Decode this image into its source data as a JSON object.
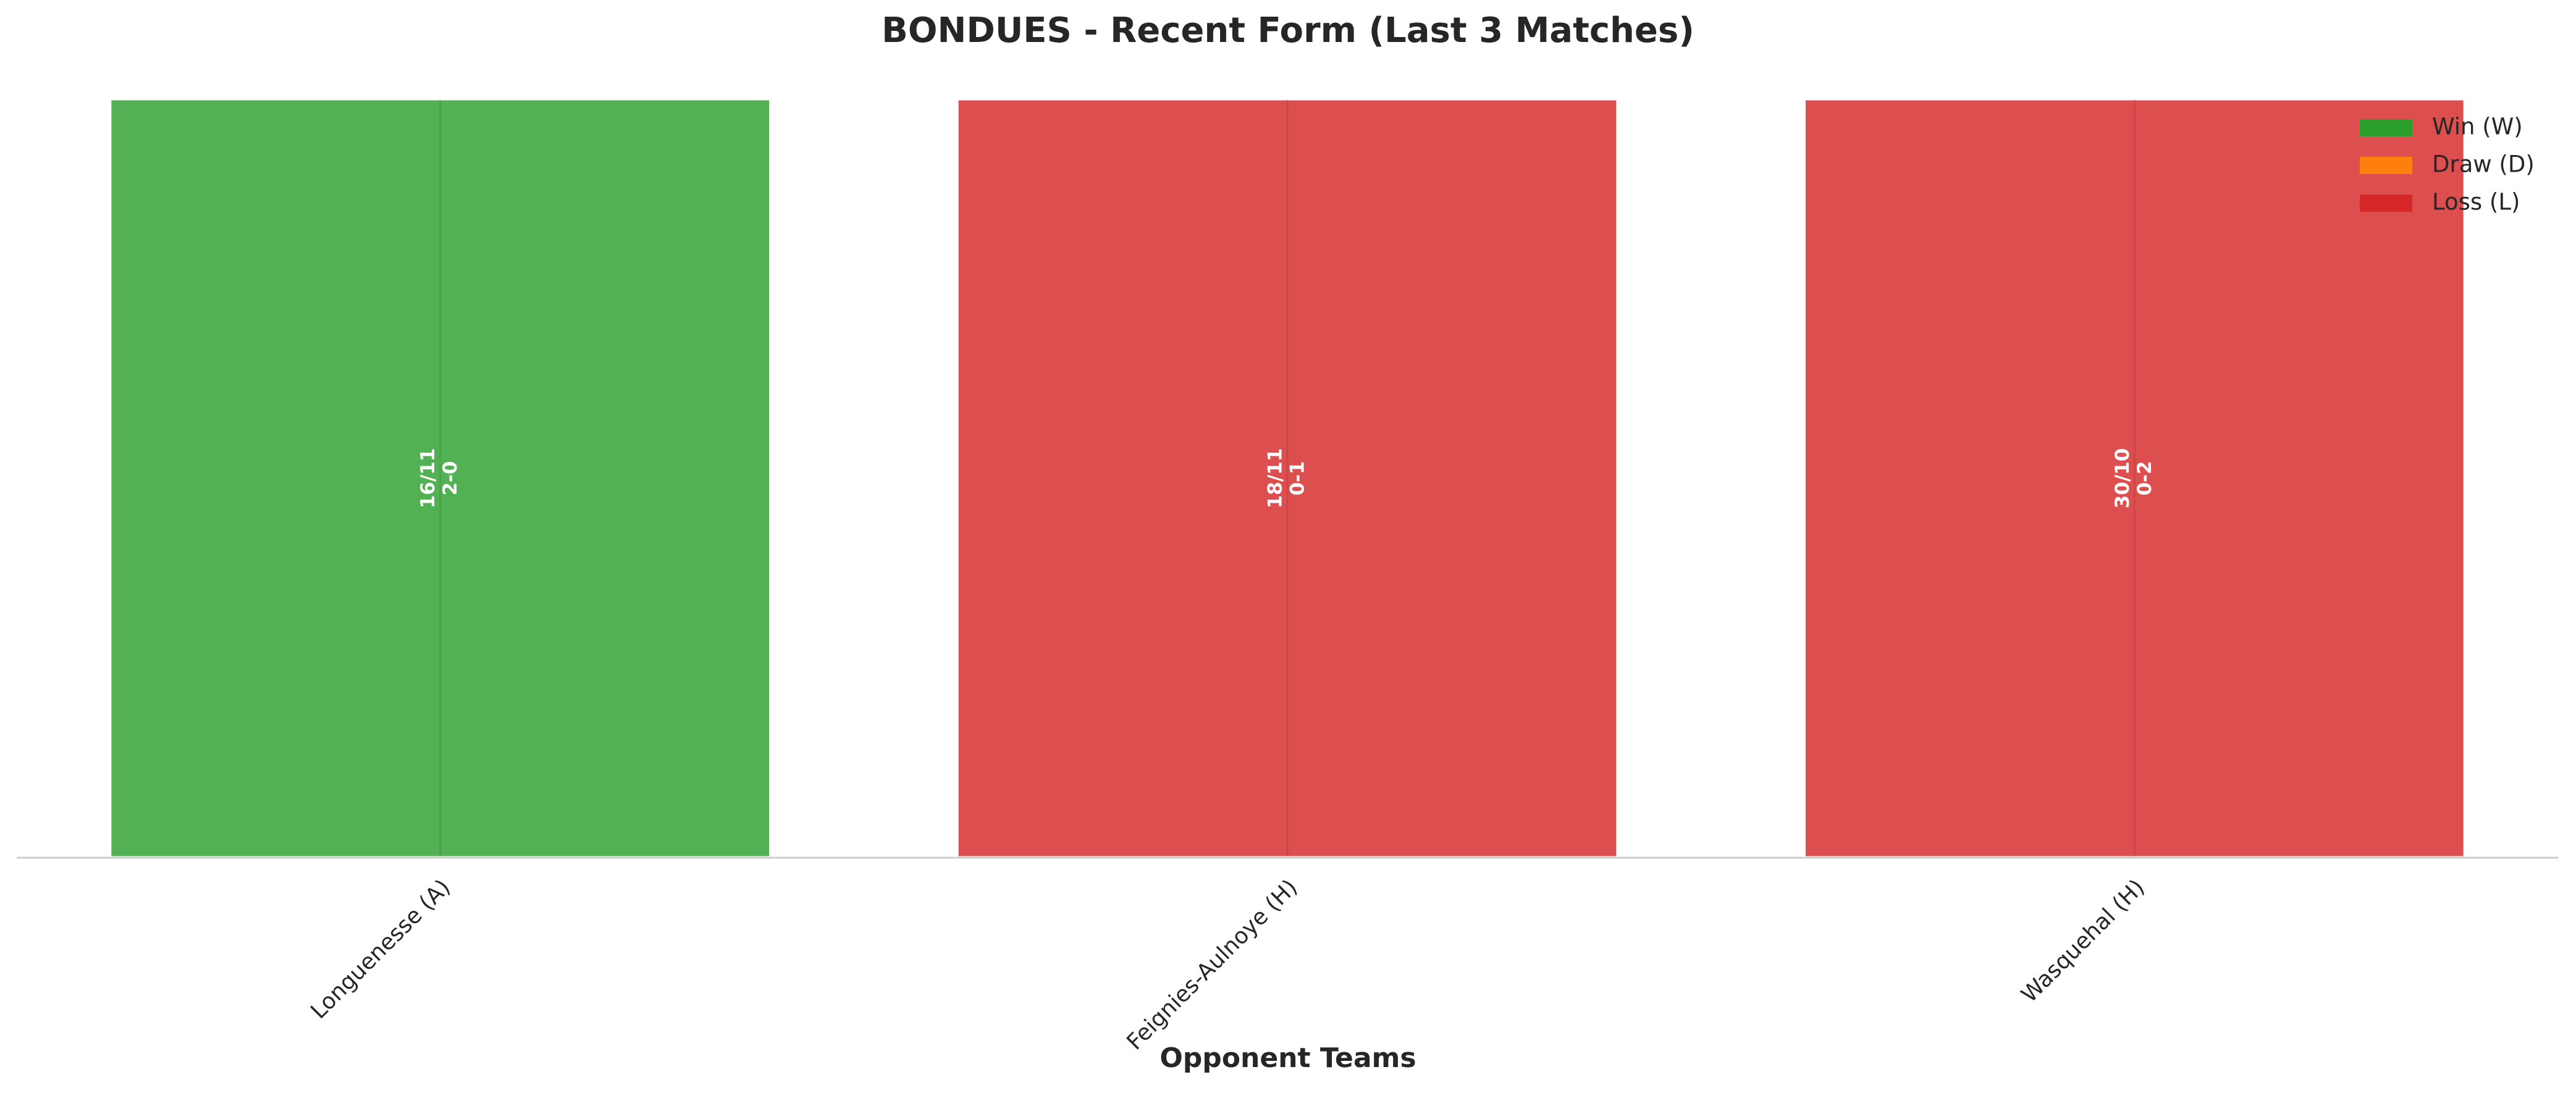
{
  "chart_data": {
    "type": "bar",
    "title": "BONDUES - Recent Form (Last 3 Matches)",
    "xlabel": "Opponent Teams",
    "categories": [
      "Longuenesse (A)",
      "Feignies-Aulnoye (H)",
      "Wasquehal (H)"
    ],
    "values": [
      1,
      1,
      1
    ],
    "colors": [
      "#2ca02c",
      "#d62728",
      "#d62728"
    ],
    "annotations": [
      {
        "date": "16/11",
        "score": "2-0"
      },
      {
        "date": "18/11",
        "score": "0-1"
      },
      {
        "date": "30/10",
        "score": "0-2"
      }
    ],
    "ylim": [
      0,
      1
    ],
    "legend_position": "upper right",
    "legend": [
      {
        "label": "Win (W)",
        "color": "#2ca02c"
      },
      {
        "label": "Draw (D)",
        "color": "#ff7f0e"
      },
      {
        "label": "Loss (L)",
        "color": "#d62728"
      }
    ]
  }
}
